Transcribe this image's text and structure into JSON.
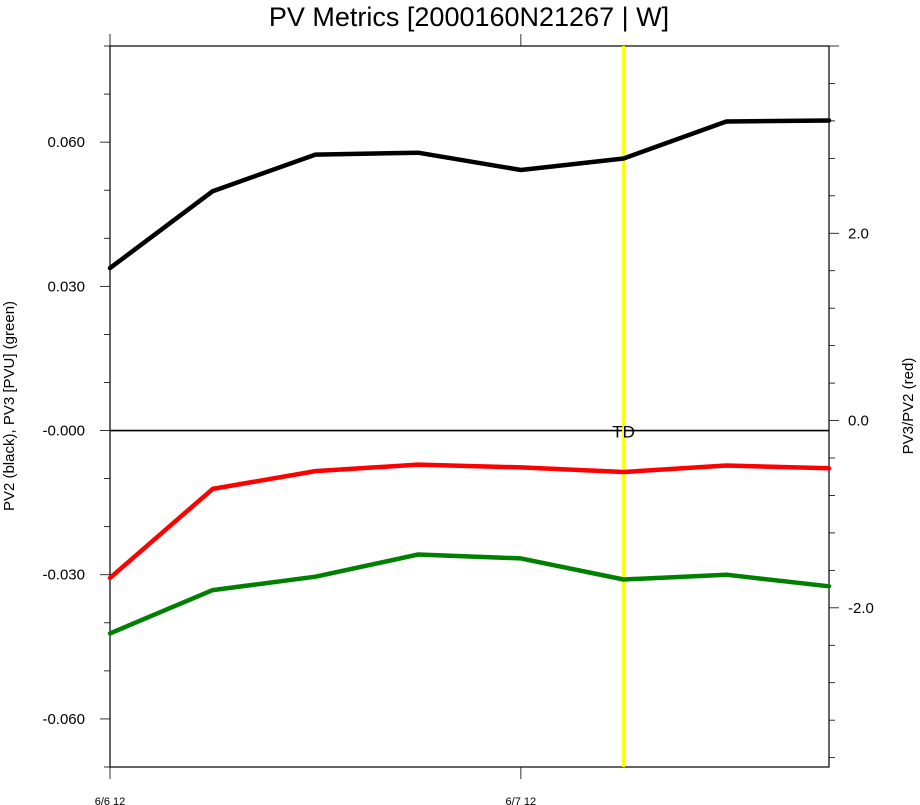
{
  "chart_data": {
    "type": "line",
    "title": "PV Metrics [2000160N21267 | W]",
    "ylabel_left": "PV2 (black), PV3 [PVU] (green)",
    "ylabel_right": "PV3/PV2 (red)",
    "x": [
      0,
      1,
      2,
      3,
      4,
      5,
      6,
      7
    ],
    "xlim": [
      0,
      7
    ],
    "x_ticks": [
      {
        "x": 0,
        "label": "6/6 12"
      },
      {
        "x": 4,
        "label": "6/7 12"
      }
    ],
    "ylim_left": [
      -0.07,
      0.08
    ],
    "yticks_left": [
      {
        "value": 0.06,
        "label": "0.060"
      },
      {
        "value": 0.03,
        "label": "0.030"
      },
      {
        "value": 0.0,
        "label": "-0.000"
      },
      {
        "value": -0.03,
        "label": "-0.030"
      },
      {
        "value": -0.06,
        "label": "-0.060"
      }
    ],
    "ylim_right": [
      -3.7,
      4.0
    ],
    "yticks_right": [
      {
        "value": 2.0,
        "label": "2.0"
      },
      {
        "value": 0.0,
        "label": "0.0"
      },
      {
        "value": -2.0,
        "label": "-2.0"
      }
    ],
    "series": [
      {
        "axis": "left",
        "color": "#000000",
        "values": [
          0.0338,
          0.0498,
          0.0574,
          0.0578,
          0.0542,
          0.0566,
          0.0643,
          0.0645
        ]
      },
      {
        "axis": "left",
        "color": "#008000",
        "values": [
          -0.0422,
          -0.0332,
          -0.0304,
          -0.0258,
          -0.0266,
          -0.031,
          -0.03,
          -0.0324
        ]
      },
      {
        "axis": "right",
        "color": "#ff0000",
        "values": [
          -1.68,
          -0.73,
          -0.54,
          -0.47,
          -0.5,
          -0.55,
          -0.48,
          -0.51
        ]
      }
    ],
    "annotation": {
      "x": 5,
      "label": "TD",
      "line_color": "#ffff00"
    }
  }
}
